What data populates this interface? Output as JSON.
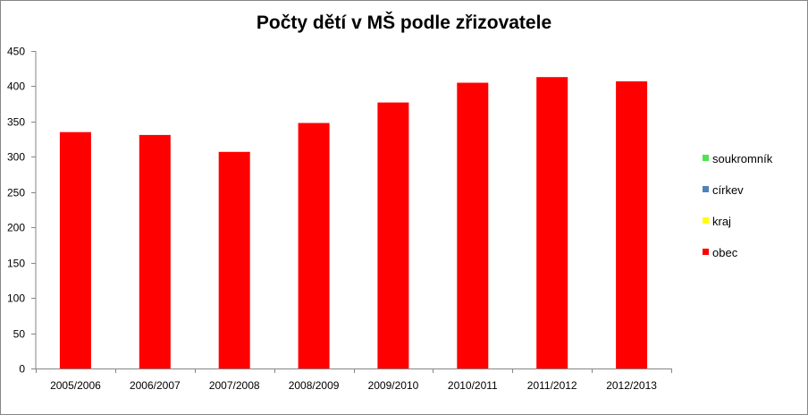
{
  "chart_data": {
    "type": "bar",
    "title": "Počty dětí v MŠ podle zřizovatele",
    "categories": [
      "2005/2006",
      "2006/2007",
      "2007/2008",
      "2008/2009",
      "2009/2010",
      "2010/2011",
      "2011/2012",
      "2012/2013"
    ],
    "series": [
      {
        "name": "soukromník",
        "color": "#4fe34f",
        "values": [
          0,
          0,
          0,
          0,
          0,
          0,
          0,
          0
        ]
      },
      {
        "name": "církev",
        "color": "#4f81bd",
        "values": [
          0,
          0,
          0,
          0,
          0,
          0,
          0,
          0
        ]
      },
      {
        "name": "kraj",
        "color": "#ffff00",
        "values": [
          0,
          0,
          0,
          0,
          0,
          0,
          0,
          0
        ]
      },
      {
        "name": "obec",
        "color": "#ff0000",
        "values": [
          335,
          331,
          307,
          348,
          377,
          405,
          413,
          407
        ]
      }
    ],
    "stacked": true,
    "ylim": [
      0,
      450
    ],
    "yticks": [
      0,
      50,
      100,
      150,
      200,
      250,
      300,
      350,
      400,
      450
    ],
    "grid": false,
    "legend": "right"
  }
}
